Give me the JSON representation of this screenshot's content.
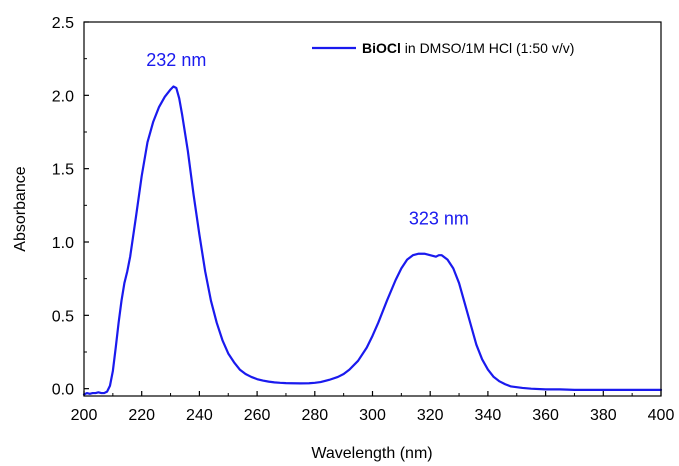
{
  "chart_data": {
    "type": "line",
    "xlabel": "Wavelength (nm)",
    "ylabel": "Absorbance",
    "xlim": [
      200,
      400
    ],
    "ylim": [
      -0.05,
      2.5
    ],
    "x_ticks": [
      "200",
      "220",
      "240",
      "260",
      "280",
      "300",
      "320",
      "340",
      "360",
      "380",
      "400"
    ],
    "y_ticks": [
      "0.0",
      "0.5",
      "1.0",
      "1.5",
      "2.0",
      "2.5"
    ],
    "grid": false,
    "legend_position": "top-right",
    "legend": {
      "bold_part": "BiOCl",
      "rest": " in DMSO/1M HCl (1:50 v/v)"
    },
    "annotations": [
      {
        "text": "232 nm",
        "x": 232,
        "y": 2.2
      },
      {
        "text": "323 nm",
        "x": 323,
        "y": 1.12
      }
    ],
    "series": [
      {
        "name": "BiOCl in DMSO/1M HCl (1:50 v/v)",
        "color": "#1a1aee",
        "x": [
          200,
          201,
          202,
          203,
          204,
          205,
          206,
          207,
          208,
          209,
          210,
          211,
          212,
          213,
          214,
          215,
          216,
          218,
          220,
          222,
          224,
          226,
          228,
          230,
          231,
          232,
          233,
          234,
          236,
          238,
          240,
          242,
          244,
          246,
          248,
          250,
          252,
          254,
          256,
          258,
          260,
          262,
          264,
          266,
          268,
          270,
          272,
          275,
          278,
          280,
          282,
          285,
          288,
          290,
          292,
          295,
          298,
          300,
          302,
          305,
          308,
          310,
          312,
          314,
          316,
          318,
          320,
          322,
          323,
          324,
          326,
          328,
          330,
          332,
          334,
          336,
          338,
          340,
          342,
          344,
          346,
          348,
          350,
          352,
          355,
          360,
          365,
          370,
          380,
          390,
          400
        ],
        "y": [
          -0.04,
          -0.03,
          -0.035,
          -0.03,
          -0.03,
          -0.025,
          -0.03,
          -0.03,
          -0.02,
          0.02,
          0.12,
          0.28,
          0.45,
          0.6,
          0.72,
          0.8,
          0.9,
          1.17,
          1.45,
          1.68,
          1.82,
          1.92,
          1.99,
          2.04,
          2.06,
          2.05,
          1.98,
          1.87,
          1.62,
          1.32,
          1.05,
          0.8,
          0.6,
          0.45,
          0.33,
          0.24,
          0.18,
          0.13,
          0.1,
          0.08,
          0.065,
          0.055,
          0.048,
          0.043,
          0.04,
          0.038,
          0.037,
          0.036,
          0.037,
          0.04,
          0.045,
          0.06,
          0.08,
          0.1,
          0.13,
          0.19,
          0.28,
          0.36,
          0.45,
          0.6,
          0.74,
          0.82,
          0.88,
          0.91,
          0.92,
          0.92,
          0.91,
          0.9,
          0.91,
          0.91,
          0.88,
          0.82,
          0.72,
          0.58,
          0.44,
          0.3,
          0.2,
          0.13,
          0.08,
          0.05,
          0.03,
          0.015,
          0.01,
          0.005,
          0.0,
          -0.005,
          -0.005,
          -0.008,
          -0.008,
          -0.008,
          -0.008
        ]
      }
    ]
  }
}
